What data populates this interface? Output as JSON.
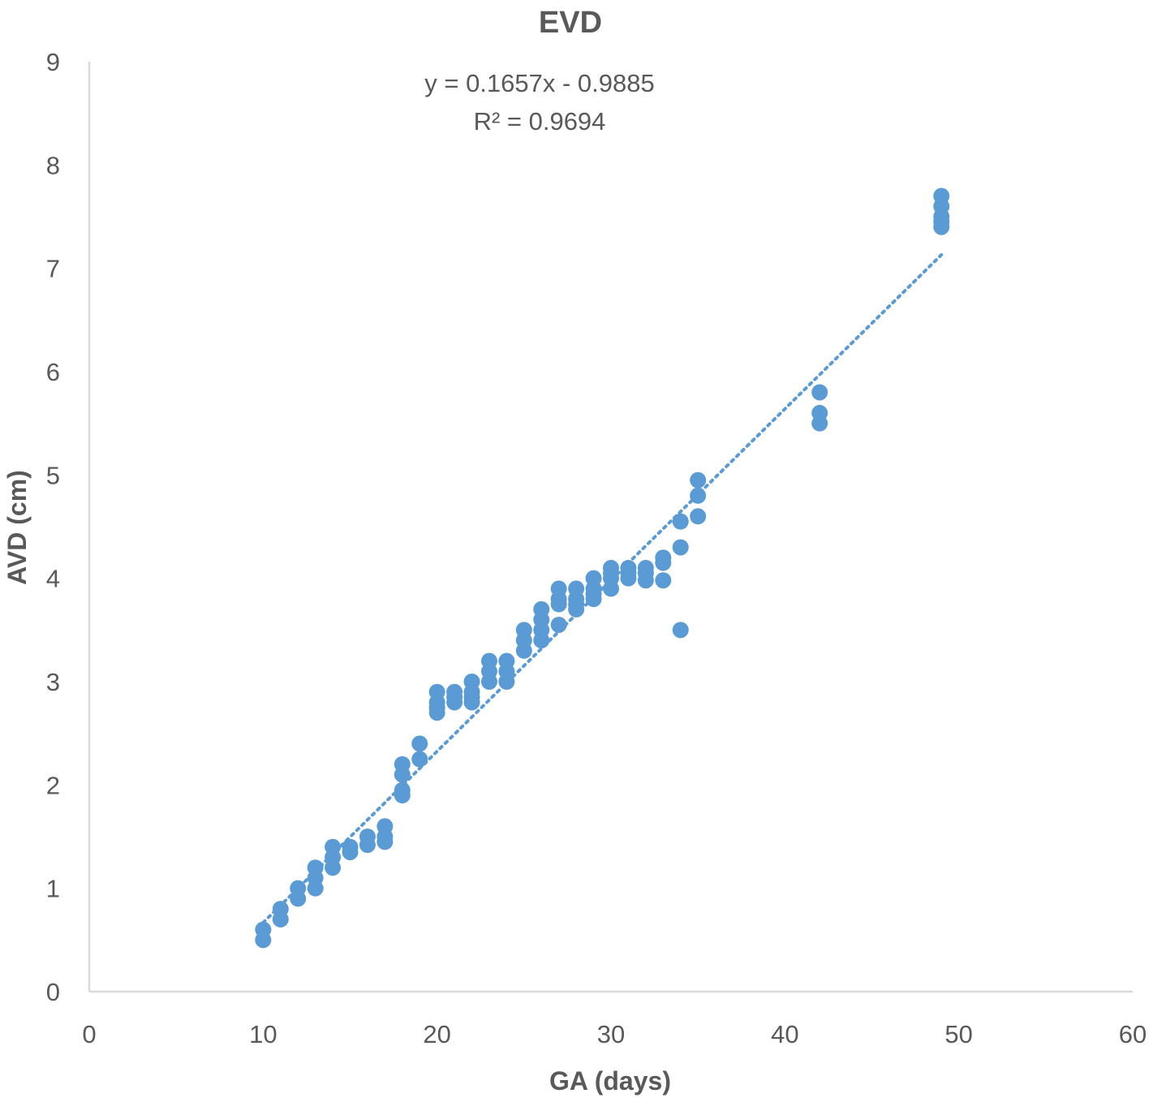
{
  "chart_data": {
    "type": "scatter",
    "title": "EVD",
    "xlabel": "GA (days)",
    "ylabel": "AVD (cm)",
    "xlim": [
      0,
      60
    ],
    "ylim": [
      0,
      9
    ],
    "x_ticks": [
      "0",
      "10",
      "20",
      "30",
      "40",
      "50",
      "60"
    ],
    "y_ticks": [
      "0",
      "1",
      "2",
      "3",
      "4",
      "5",
      "6",
      "7",
      "8",
      "9"
    ],
    "grid": false,
    "legend": "none",
    "trendline": {
      "type": "linear",
      "slope": 0.1657,
      "intercept": -0.9885,
      "x_range": [
        10,
        49
      ],
      "equation_label": "y = 0.1657x - 0.9885",
      "r2_label": "R² = 0.9694"
    },
    "colors": {
      "marker": "#5b9bd5",
      "trendline": "#5b9bd5",
      "axis": "#d9d9d9",
      "text": "#595959"
    },
    "series": [
      {
        "points": [
          [
            10,
            0.5
          ],
          [
            10,
            0.6
          ],
          [
            11,
            0.7
          ],
          [
            11,
            0.8
          ],
          [
            12,
            0.9
          ],
          [
            12,
            1.0
          ],
          [
            13,
            1.0
          ],
          [
            13,
            1.1
          ],
          [
            13,
            1.2
          ],
          [
            14,
            1.2
          ],
          [
            14,
            1.3
          ],
          [
            14,
            1.4
          ],
          [
            15,
            1.35
          ],
          [
            15,
            1.4
          ],
          [
            16,
            1.42
          ],
          [
            16,
            1.5
          ],
          [
            17,
            1.45
          ],
          [
            17,
            1.5
          ],
          [
            17,
            1.6
          ],
          [
            18,
            1.9
          ],
          [
            18,
            1.95
          ],
          [
            18,
            2.1
          ],
          [
            18,
            2.2
          ],
          [
            19,
            2.25
          ],
          [
            19,
            2.4
          ],
          [
            20,
            2.7
          ],
          [
            20,
            2.75
          ],
          [
            20,
            2.8
          ],
          [
            20,
            2.9
          ],
          [
            21,
            2.8
          ],
          [
            21,
            2.85
          ],
          [
            21,
            2.9
          ],
          [
            22,
            2.8
          ],
          [
            22,
            2.85
          ],
          [
            22,
            2.9
          ],
          [
            22,
            3.0
          ],
          [
            23,
            3.0
          ],
          [
            23,
            3.1
          ],
          [
            23,
            3.2
          ],
          [
            24,
            3.0
          ],
          [
            24,
            3.1
          ],
          [
            24,
            3.2
          ],
          [
            25,
            3.3
          ],
          [
            25,
            3.4
          ],
          [
            25,
            3.5
          ],
          [
            26,
            3.4
          ],
          [
            26,
            3.5
          ],
          [
            26,
            3.6
          ],
          [
            26,
            3.7
          ],
          [
            27,
            3.55
          ],
          [
            27,
            3.75
          ],
          [
            27,
            3.8
          ],
          [
            27,
            3.9
          ],
          [
            28,
            3.7
          ],
          [
            28,
            3.75
          ],
          [
            28,
            3.8
          ],
          [
            28,
            3.9
          ],
          [
            29,
            3.8
          ],
          [
            29,
            3.85
          ],
          [
            29,
            3.9
          ],
          [
            29,
            4.0
          ],
          [
            30,
            3.9
          ],
          [
            30,
            4.0
          ],
          [
            30,
            4.05
          ],
          [
            30,
            4.1
          ],
          [
            31,
            4.0
          ],
          [
            31,
            4.05
          ],
          [
            31,
            4.1
          ],
          [
            32,
            3.98
          ],
          [
            32,
            4.05
          ],
          [
            32,
            4.1
          ],
          [
            33,
            3.98
          ],
          [
            33,
            4.15
          ],
          [
            33,
            4.2
          ],
          [
            34,
            3.5
          ],
          [
            34,
            4.3
          ],
          [
            34,
            4.55
          ],
          [
            35,
            4.6
          ],
          [
            35,
            4.8
          ],
          [
            35,
            4.95
          ],
          [
            42,
            5.5
          ],
          [
            42,
            5.6
          ],
          [
            42,
            5.8
          ],
          [
            49,
            7.4
          ],
          [
            49,
            7.45
          ],
          [
            49,
            7.5
          ],
          [
            49,
            7.6
          ],
          [
            49,
            7.7
          ]
        ]
      }
    ]
  }
}
